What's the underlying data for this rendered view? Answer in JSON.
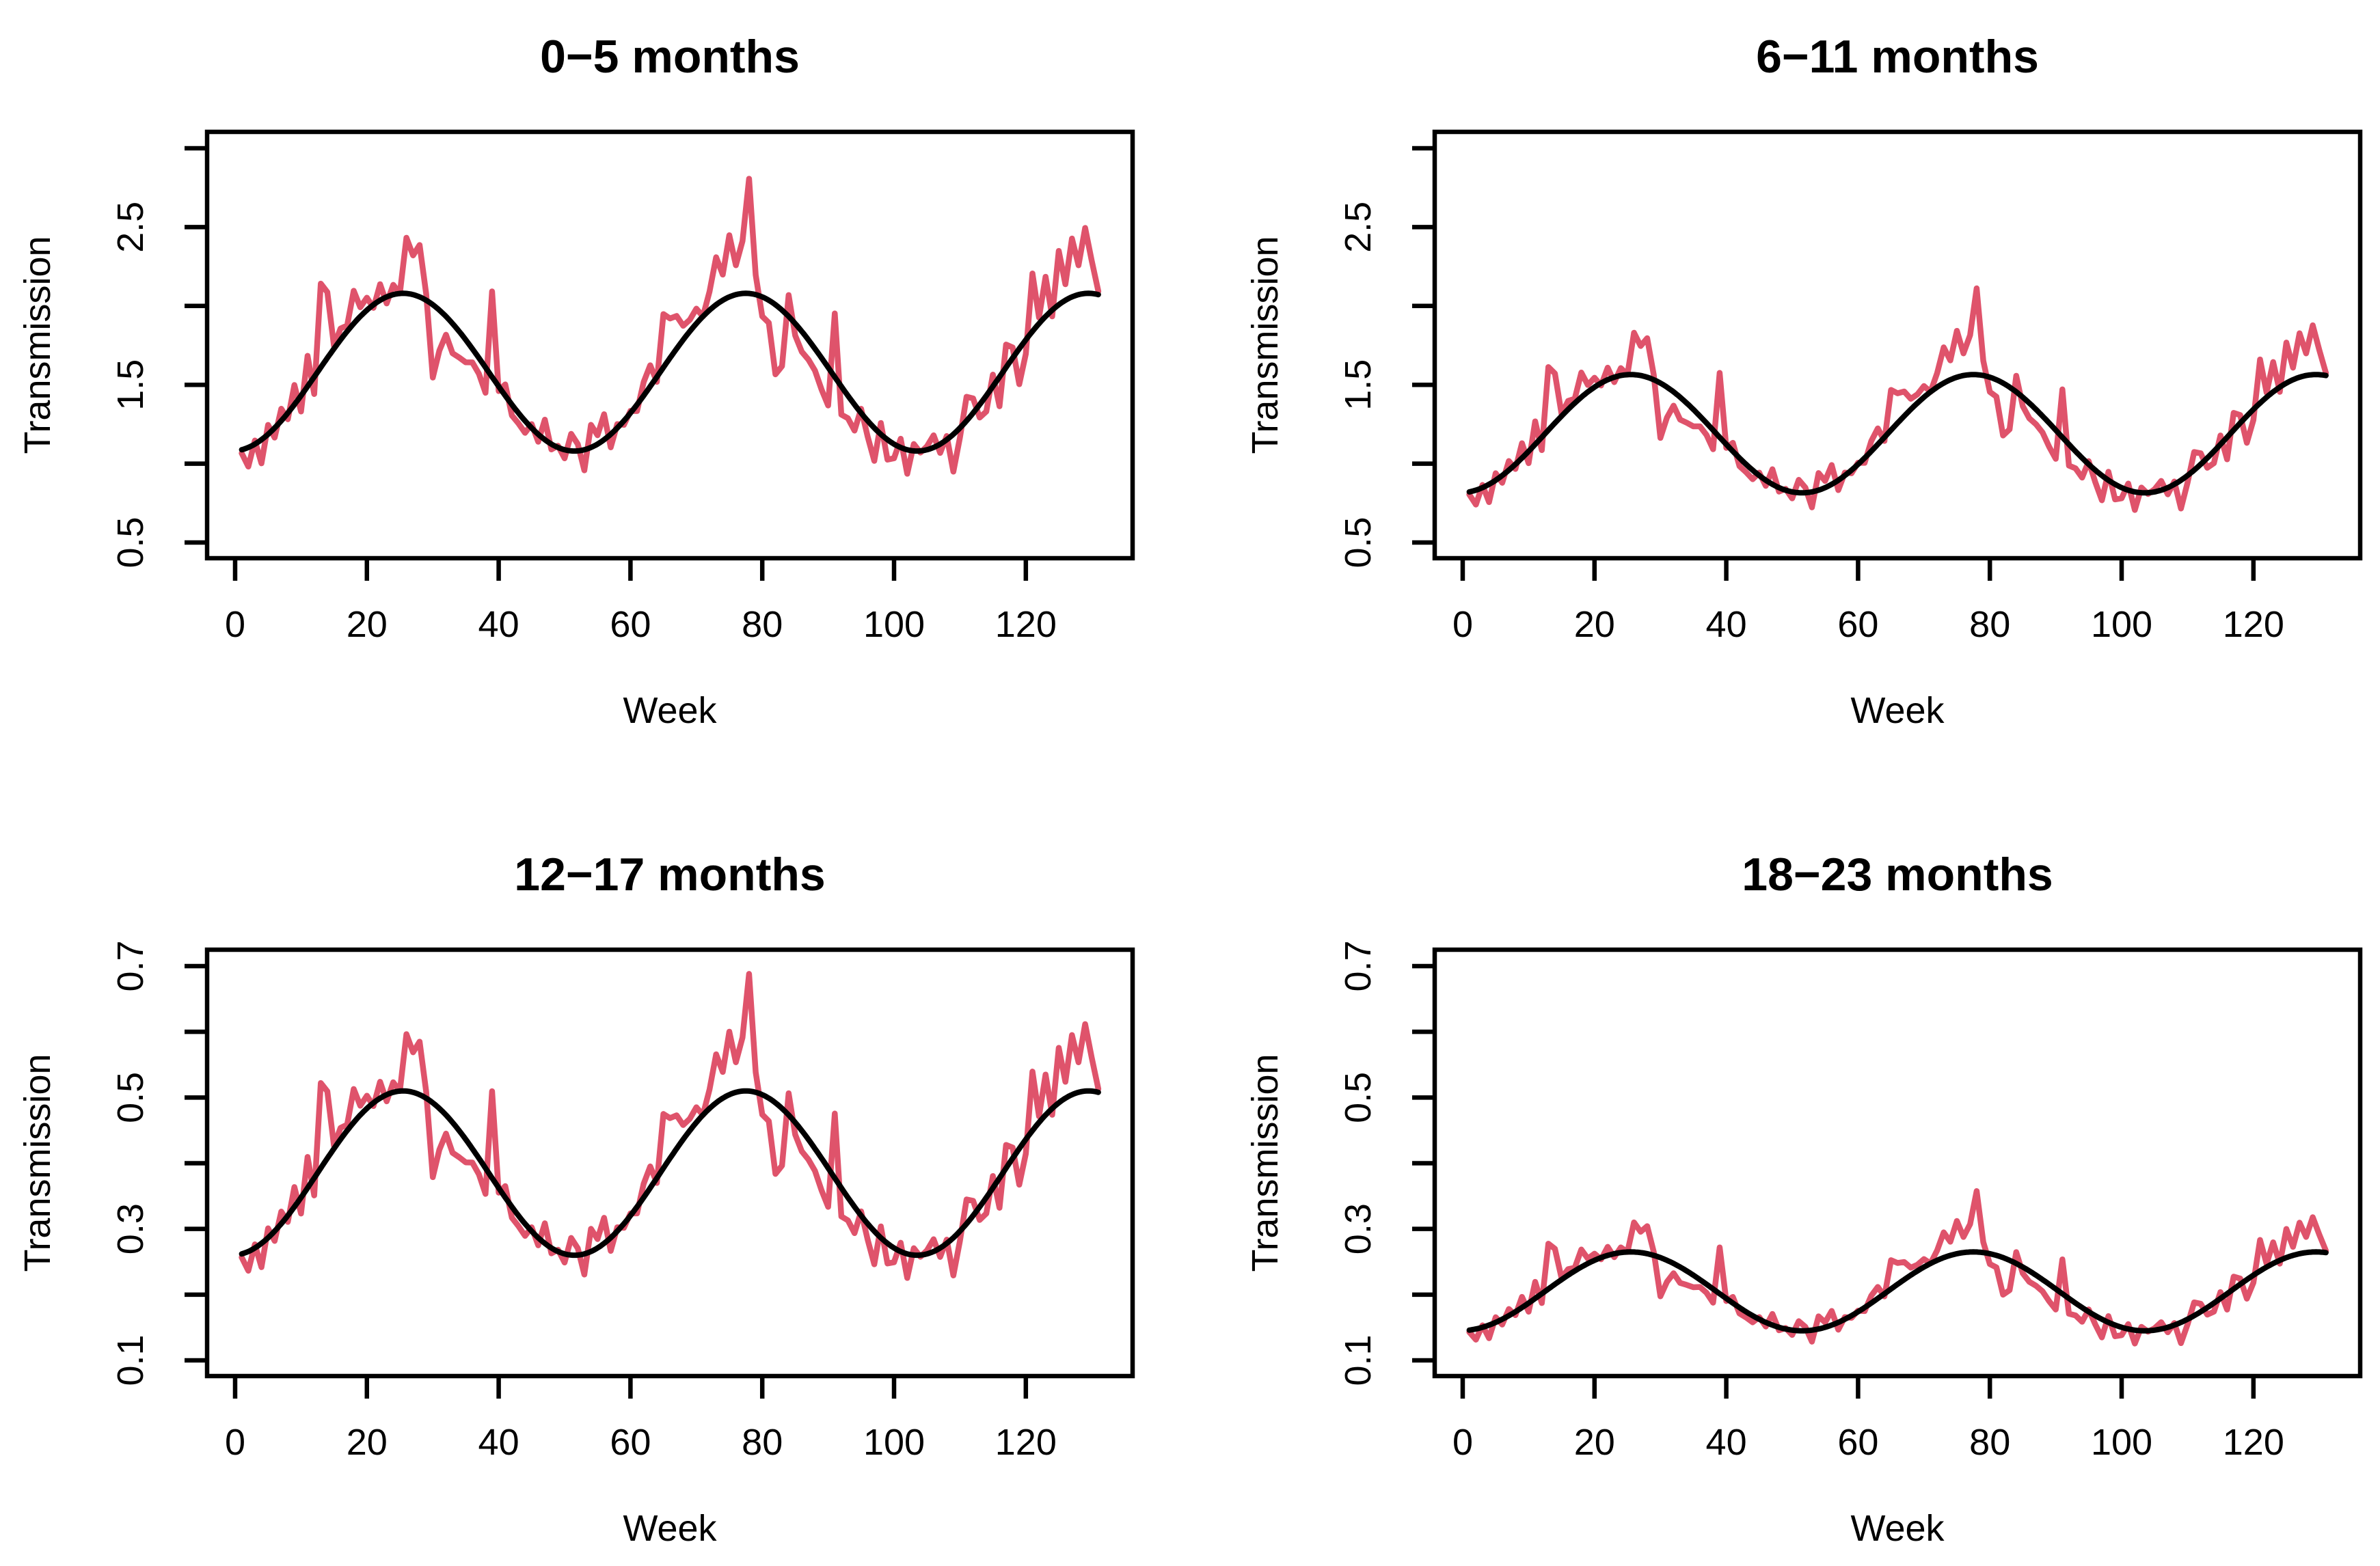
{
  "figure": {
    "background": "#FFFFFF",
    "description": "Four-panel R-style figure of weekly transmission estimates (red noisy line) with smooth seasonal trend (black line) by infant age group"
  },
  "colors": {
    "noisy_series": "#DF536B",
    "smooth_series": "#000000",
    "axis": "#000000"
  },
  "weeks": {
    "start": 1,
    "end": 131,
    "step": 1
  },
  "noise_ratio": [
    0.98,
    0.89,
    1.02,
    0.87,
    1.05,
    0.95,
    1.06,
    0.97,
    1.09,
    0.93,
    1.13,
    0.93,
    1.33,
    1.25,
    1.01,
    1.04,
    1.02,
    1.11,
    1.03,
    1.04,
    0.99,
    1.05,
    0.98,
    1.03,
    1.0,
    1.17,
    1.12,
    1.16,
    1.02,
    0.77,
    0.87,
    0.94,
    0.9,
    0.91,
    0.92,
    0.95,
    0.94,
    0.9,
    1.35,
    0.98,
    1.05,
    0.95,
    0.95,
    0.94,
    1.02,
    0.96,
    1.11,
    0.97,
    1.01,
    0.95,
    1.1,
    1.04,
    0.88,
    1.13,
    1.05,
    1.14,
    0.93,
    1.02,
    0.98,
    1.01,
    0.97,
    1.06,
    1.09,
    0.98,
    1.21,
    1.15,
    1.12,
    1.05,
    1.04,
    1.05,
    1.0,
    1.06,
    1.15,
    1.08,
    1.19,
    1.09,
    1.16,
    1.35,
    1.06,
    0.94,
    0.93,
    0.78,
    0.82,
    1.07,
    0.96,
    0.93,
    0.93,
    0.92,
    0.88,
    0.85,
    1.26,
    0.88,
    0.9,
    0.88,
    1.02,
    0.92,
    0.83,
    1.06,
    0.89,
    0.92,
    1.05,
    0.86,
    1.04,
    0.99,
    1.02,
    1.07,
    0.95,
    1.02,
    0.8,
    0.95,
    1.12,
    1.07,
    0.94,
    0.93,
    1.05,
    0.88,
    1.09,
    1.04,
    0.87,
    0.95,
    1.2,
    1.02,
    1.13,
    0.98,
    1.17,
    1.05,
    1.18,
    1.09,
    1.2,
    1.1,
    1.01
  ],
  "chart_data": [
    {
      "type": "line",
      "title": "0−5 months",
      "xlabel": "Week",
      "ylabel": "Transmission",
      "xlim": [
        -4.25,
        136.2
      ],
      "ylim": [
        0.4,
        3.1
      ],
      "x_ticks": [
        0,
        20,
        40,
        60,
        80,
        100,
        120
      ],
      "x_tick_labels": [
        "0",
        "20",
        "40",
        "60",
        "80",
        "100",
        "120"
      ],
      "y_ticks": [
        0.5,
        1.0,
        1.5,
        2.0,
        2.5,
        3.0
      ],
      "y_tick_labels": [
        "0.5",
        "",
        "1.5",
        "",
        "2.5",
        ""
      ],
      "grid": false,
      "legend": "none",
      "series": [
        {
          "key": "noisy",
          "color": "#DF536B",
          "derivation": "smooth(t) * noise_ratio[t]"
        },
        {
          "key": "smooth",
          "color": "#000000",
          "smooth_params": {
            "mean": 1.58,
            "amplitude": 0.5,
            "period_weeks": 52,
            "peak_week": 25.5
          },
          "smooth_range": [
            1.08,
            2.08
          ]
        }
      ]
    },
    {
      "type": "line",
      "title": "6−11 months",
      "xlabel": "Week",
      "ylabel": "Transmission",
      "xlim": [
        -4.25,
        136.2
      ],
      "ylim": [
        0.4,
        3.1
      ],
      "x_ticks": [
        0,
        20,
        40,
        60,
        80,
        100,
        120
      ],
      "x_tick_labels": [
        "0",
        "20",
        "40",
        "60",
        "80",
        "100",
        "120"
      ],
      "y_ticks": [
        0.5,
        1.0,
        1.5,
        2.0,
        2.5,
        3.0
      ],
      "y_tick_labels": [
        "0.5",
        "",
        "1.5",
        "",
        "2.5",
        ""
      ],
      "grid": false,
      "legend": "none",
      "series": [
        {
          "key": "noisy",
          "color": "#DF536B",
          "derivation": "smooth(t) * noise_ratio[t]"
        },
        {
          "key": "smooth",
          "color": "#000000",
          "smooth_params": {
            "mean": 1.19,
            "amplitude": 0.375,
            "period_weeks": 52,
            "peak_week": 25.5
          },
          "smooth_range": [
            0.815,
            1.565
          ]
        }
      ]
    },
    {
      "type": "line",
      "title": "12−17 months",
      "xlabel": "Week",
      "ylabel": "Transmission",
      "xlim": [
        -4.25,
        136.2
      ],
      "ylim": [
        0.076,
        0.725
      ],
      "x_ticks": [
        0,
        20,
        40,
        60,
        80,
        100,
        120
      ],
      "x_tick_labels": [
        "0",
        "20",
        "40",
        "60",
        "80",
        "100",
        "120"
      ],
      "y_ticks": [
        0.1,
        0.2,
        0.3,
        0.4,
        0.5,
        0.6,
        0.7
      ],
      "y_tick_labels": [
        "0.1",
        "",
        "0.3",
        "",
        "0.5",
        "",
        "0.7"
      ],
      "grid": false,
      "legend": "none",
      "series": [
        {
          "key": "noisy",
          "color": "#DF536B",
          "derivation": "smooth(t) * noise_ratio[t]"
        },
        {
          "key": "smooth",
          "color": "#000000",
          "smooth_params": {
            "mean": 0.385,
            "amplitude": 0.125,
            "period_weeks": 52,
            "peak_week": 25.5
          },
          "smooth_range": [
            0.26,
            0.51
          ]
        }
      ]
    },
    {
      "type": "line",
      "title": "18−23 months",
      "xlabel": "Week",
      "ylabel": "Transmission",
      "xlim": [
        -4.25,
        136.2
      ],
      "ylim": [
        0.076,
        0.725
      ],
      "x_ticks": [
        0,
        20,
        40,
        60,
        80,
        100,
        120
      ],
      "x_tick_labels": [
        "0",
        "20",
        "40",
        "60",
        "80",
        "100",
        "120"
      ],
      "y_ticks": [
        0.1,
        0.2,
        0.3,
        0.4,
        0.5,
        0.6,
        0.7
      ],
      "y_tick_labels": [
        "0.1",
        "",
        "0.3",
        "",
        "0.5",
        "",
        "0.7"
      ],
      "grid": false,
      "legend": "none",
      "series": [
        {
          "key": "noisy",
          "color": "#DF536B",
          "derivation": "smooth(t) * noise_ratio[t]"
        },
        {
          "key": "smooth",
          "color": "#000000",
          "smooth_params": {
            "mean": 0.205,
            "amplitude": 0.06,
            "period_weeks": 52,
            "peak_week": 25.5
          },
          "smooth_range": [
            0.145,
            0.265
          ]
        }
      ]
    }
  ]
}
